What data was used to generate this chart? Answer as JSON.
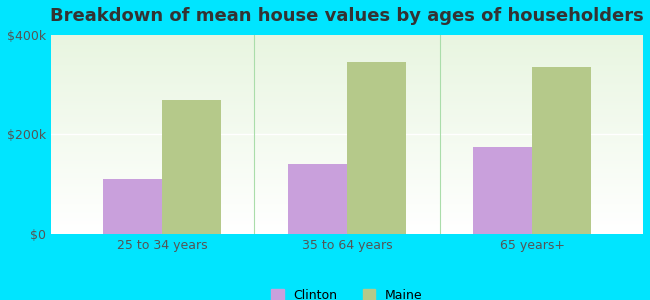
{
  "title": "Breakdown of mean house values by ages of householders",
  "categories": [
    "25 to 34 years",
    "35 to 64 years",
    "65 years+"
  ],
  "clinton_values": [
    110000,
    140000,
    175000
  ],
  "maine_values": [
    270000,
    345000,
    335000
  ],
  "clinton_color": "#c9a0dc",
  "maine_color": "#b5c98a",
  "background_color": "#00e5ff",
  "ylim": [
    0,
    400000
  ],
  "yticks": [
    0,
    200000,
    400000
  ],
  "ytick_labels": [
    "$0",
    "$200k",
    "$400k"
  ],
  "legend_labels": [
    "Clinton",
    "Maine"
  ],
  "title_fontsize": 13,
  "tick_fontsize": 9,
  "legend_fontsize": 9,
  "bar_width": 0.32
}
